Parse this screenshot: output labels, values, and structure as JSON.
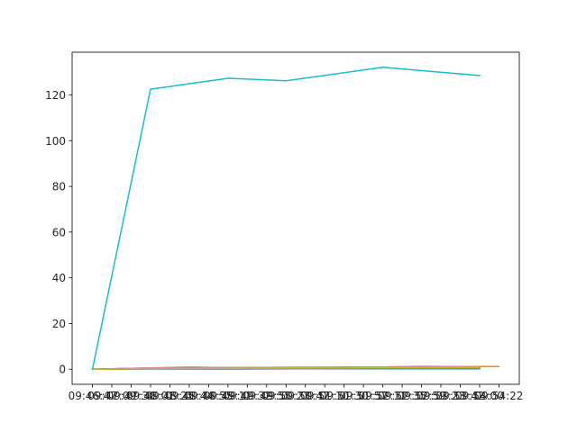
{
  "chart_data": {
    "type": "line",
    "title": "",
    "xlabel": "",
    "ylabel": "",
    "x_ticks": [
      "09:46:47",
      "09:47:09",
      "09:47:30",
      "09:48:01",
      "09:48:25",
      "09:48:44",
      "09:48:55",
      "09:49:11",
      "09:49:32",
      "09:49:55",
      "09:50:23",
      "09:50:47",
      "09:51:10",
      "09:51:30",
      "09:51:57",
      "09:52:11",
      "09:52:35",
      "09:52:59",
      "09:53:23",
      "09:53:42",
      "09:54:00",
      "09:54:22"
    ],
    "x_index": [
      0,
      1,
      2,
      3,
      4,
      5,
      6,
      7,
      8,
      9,
      10,
      11,
      12,
      13,
      14,
      15,
      16,
      17,
      18,
      19,
      20,
      21
    ],
    "xlim": [
      -1.05,
      22.05
    ],
    "ylim": [
      -6.6,
      138.7
    ],
    "y_ticks": [
      0,
      20,
      40,
      60,
      80,
      100,
      120
    ],
    "grid": false,
    "legend": "none",
    "series": [
      {
        "color": "#1f77b4",
        "x": [
          0,
          3,
          7,
          10,
          15,
          20
        ],
        "y": [
          0,
          0.1,
          0.1,
          0.2,
          0.2,
          0.2
        ]
      },
      {
        "color": "#ff7f0e",
        "x": [
          0,
          1,
          2,
          3,
          4,
          5,
          6,
          7,
          8,
          9,
          10,
          11,
          12,
          13,
          14,
          15,
          16,
          17,
          18,
          19,
          20,
          21
        ],
        "y": [
          0,
          0.2,
          0.4,
          0.5,
          0.6,
          0.7,
          0.8,
          0.8,
          0.8,
          0.8,
          0.9,
          0.9,
          0.9,
          1.0,
          1.0,
          1.0,
          1.1,
          1.2,
          1.2,
          1.2,
          1.2,
          1.2
        ]
      },
      {
        "color": "#2ca02c",
        "x": [
          0,
          3,
          5,
          7,
          10,
          13,
          15,
          17,
          20
        ],
        "y": [
          0,
          0.3,
          0.5,
          0.4,
          0.5,
          0.6,
          0.6,
          0.7,
          0.7
        ]
      },
      {
        "color": "#d62728",
        "x": [
          0,
          3,
          5,
          7,
          10,
          13,
          15,
          17,
          20
        ],
        "y": [
          0,
          0.5,
          0.8,
          0.6,
          0.7,
          0.8,
          0.9,
          1.0,
          0.9
        ]
      },
      {
        "color": "#9467bd",
        "x": [
          0,
          3,
          5,
          7,
          10,
          15,
          20
        ],
        "y": [
          0,
          0.4,
          0.6,
          0.5,
          0.6,
          0.7,
          0.8
        ]
      },
      {
        "color": "#8c564b",
        "x": [
          0,
          3,
          5,
          7,
          10,
          15,
          20
        ],
        "y": [
          0,
          0.2,
          0.3,
          0.3,
          0.4,
          0.4,
          0.5
        ]
      },
      {
        "color": "#e377c2",
        "x": [
          0,
          3,
          5,
          7,
          10,
          15,
          17,
          20
        ],
        "y": [
          0,
          0.6,
          1.0,
          0.7,
          0.8,
          1.0,
          1.3,
          1.0
        ]
      },
      {
        "color": "#7f7f7f",
        "x": [
          0,
          3,
          7,
          10,
          15,
          20
        ],
        "y": [
          0,
          0.2,
          0.3,
          0.3,
          0.4,
          0.4
        ]
      },
      {
        "color": "#bcbd22",
        "x": [
          0,
          3,
          7,
          10,
          15,
          20
        ],
        "y": [
          0,
          0.3,
          0.4,
          0.5,
          0.6,
          0.7
        ]
      },
      {
        "color": "#17becf",
        "x": [
          0,
          3,
          7,
          10,
          15,
          20
        ],
        "y": [
          0,
          122.5,
          127.3,
          126.2,
          132.1,
          128.5
        ]
      }
    ]
  }
}
